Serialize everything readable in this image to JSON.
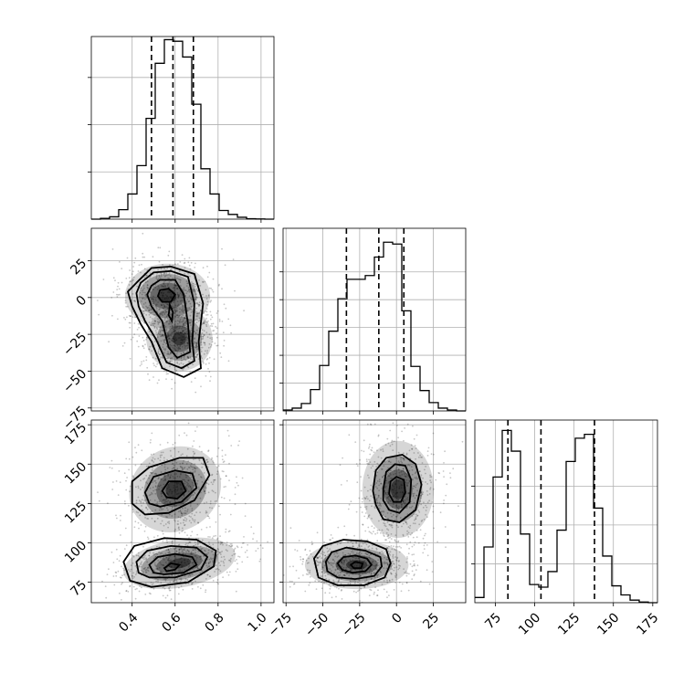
{
  "chart_data": {
    "type": "corner",
    "grid": true,
    "parameters": [
      {
        "range": [
          0.21,
          1.06
        ],
        "ticks": [
          0.4,
          0.6,
          0.8,
          1.0
        ],
        "tick_labels": [
          "0.4",
          "0.6",
          "0.8",
          "1.0"
        ],
        "quantiles": [
          0.49,
          0.59,
          0.685
        ]
      },
      {
        "range": [
          -77,
          47
        ],
        "ticks": [
          -75,
          -50,
          -25,
          0,
          25
        ],
        "tick_labels": [
          "−75",
          "−50",
          "−25",
          "0",
          "25"
        ],
        "quantiles": [
          -34,
          -12,
          5
        ]
      },
      {
        "range": [
          62,
          178
        ],
        "ticks": [
          75,
          100,
          125,
          150,
          175
        ],
        "tick_labels": [
          "75",
          "100",
          "125",
          "150",
          "175"
        ],
        "quantiles": [
          83,
          104,
          138
        ]
      }
    ],
    "histograms": [
      {
        "edges_start": 0.21,
        "bin_width": 0.0425,
        "counts": [
          0,
          0.05,
          0.15,
          0.6,
          1.6,
          3.4,
          6.4,
          9.9,
          11.4,
          11.3,
          10.3,
          7.3,
          3.2,
          1.6,
          0.55,
          0.3,
          0.12,
          0.03,
          0.01,
          0
        ],
        "ylim": [
          0,
          11.6
        ],
        "yticks": [
          3,
          6,
          9
        ]
      },
      {
        "edges_start": -77,
        "bin_width": 6.2,
        "counts": [
          0.1,
          0.3,
          0.8,
          2.3,
          4.9,
          8.6,
          12.1,
          14.2,
          14.2,
          14.6,
          16.6,
          18.2,
          18.0,
          10.8,
          4.8,
          2.2,
          0.9,
          0.3,
          0.1,
          0
        ],
        "ylim": [
          0,
          19.7
        ],
        "yticks": [
          3,
          6,
          9,
          12,
          15
        ]
      },
      {
        "edges_start": 62,
        "bin_width": 5.8,
        "counts": [
          0.4,
          4.3,
          9.7,
          13.3,
          11.7,
          5.3,
          1.4,
          1.2,
          2.4,
          5.6,
          10.9,
          12.7,
          13.0,
          7.3,
          3.6,
          1.3,
          0.6,
          0.2,
          0.05,
          0
        ],
        "ylim": [
          0,
          14.1
        ],
        "yticks": [
          3,
          6,
          9
        ]
      }
    ],
    "pairs": [
      {
        "x": 0,
        "y": 1,
        "blobs": [
          {
            "cx": 0.565,
            "cy": 1,
            "rx": 0.09,
            "ry": 10,
            "rot": 0
          },
          {
            "cx": 0.62,
            "cy": -28,
            "rx": 0.07,
            "ry": 10,
            "rot": 0
          }
        ],
        "contours": [
          [
            [
              0.42,
              10
            ],
            [
              0.49,
              20
            ],
            [
              0.58,
              21
            ],
            [
              0.69,
              16
            ],
            [
              0.73,
              -4
            ],
            [
              0.71,
              -30
            ],
            [
              0.72,
              -48
            ],
            [
              0.64,
              -54
            ],
            [
              0.54,
              -48
            ],
            [
              0.49,
              -30
            ],
            [
              0.44,
              -18
            ],
            [
              0.4,
              -6
            ],
            [
              0.38,
              4
            ]
          ],
          [
            [
              0.44,
              10
            ],
            [
              0.5,
              17
            ],
            [
              0.58,
              18
            ],
            [
              0.66,
              14
            ],
            [
              0.69,
              -4
            ],
            [
              0.68,
              -30
            ],
            [
              0.69,
              -43
            ],
            [
              0.63,
              -48
            ],
            [
              0.56,
              -44
            ],
            [
              0.51,
              -28
            ],
            [
              0.46,
              -16
            ],
            [
              0.43,
              -6
            ],
            [
              0.42,
              3
            ]
          ],
          [
            [
              0.49,
              8
            ],
            [
              0.53,
              12
            ],
            [
              0.6,
              12
            ],
            [
              0.64,
              2
            ],
            [
              0.66,
              -18
            ],
            [
              0.67,
              -37
            ],
            [
              0.61,
              -41
            ],
            [
              0.57,
              -34
            ],
            [
              0.54,
              -16
            ],
            [
              0.49,
              -6
            ],
            [
              0.47,
              2
            ]
          ],
          [
            [
              0.53,
              5
            ],
            [
              0.57,
              6
            ],
            [
              0.6,
              2
            ],
            [
              0.58,
              -3
            ],
            [
              0.54,
              -3
            ],
            [
              0.52,
              1
            ]
          ],
          [
            [
              0.575,
              -5
            ],
            [
              0.59,
              -10
            ],
            [
              0.585,
              -16
            ],
            [
              0.57,
              -12
            ]
          ]
        ]
      },
      {
        "x": 0,
        "y": 2,
        "blobs": [
          {
            "cx": 0.6,
            "cy": 134,
            "rx": 0.1,
            "ry": 12,
            "rot": -30
          },
          {
            "cx": 0.62,
            "cy": 87,
            "rx": 0.12,
            "ry": 7,
            "rot": -10
          }
        ],
        "contours": [
          [
            [
              0.4,
              125
            ],
            [
              0.4,
              139
            ],
            [
              0.48,
              148
            ],
            [
              0.62,
              154
            ],
            [
              0.73,
              154
            ],
            [
              0.76,
              143
            ],
            [
              0.69,
              127
            ],
            [
              0.57,
              119
            ],
            [
              0.46,
              118
            ]
          ],
          [
            [
              0.46,
              132
            ],
            [
              0.5,
              142
            ],
            [
              0.6,
              146
            ],
            [
              0.68,
              144
            ],
            [
              0.7,
              135
            ],
            [
              0.63,
              126
            ],
            [
              0.53,
              123
            ],
            [
              0.48,
              125
            ]
          ],
          [
            [
              0.54,
              133
            ],
            [
              0.57,
              139
            ],
            [
              0.63,
              139
            ],
            [
              0.65,
              133
            ],
            [
              0.61,
              128
            ],
            [
              0.56,
              129
            ]
          ],
          [
            [
              0.36,
              88
            ],
            [
              0.41,
              98
            ],
            [
              0.55,
              103
            ],
            [
              0.7,
              102
            ],
            [
              0.79,
              95
            ],
            [
              0.78,
              85
            ],
            [
              0.66,
              75
            ],
            [
              0.49,
              72
            ],
            [
              0.39,
              76
            ]
          ],
          [
            [
              0.42,
              88
            ],
            [
              0.47,
              95
            ],
            [
              0.58,
              98
            ],
            [
              0.7,
              97
            ],
            [
              0.75,
              91
            ],
            [
              0.72,
              83
            ],
            [
              0.6,
              78
            ],
            [
              0.48,
              78
            ],
            [
              0.43,
              81
            ]
          ],
          [
            [
              0.48,
              86
            ],
            [
              0.52,
              91
            ],
            [
              0.6,
              93
            ],
            [
              0.68,
              91
            ],
            [
              0.7,
              86
            ],
            [
              0.64,
              81
            ],
            [
              0.55,
              80
            ],
            [
              0.5,
              81
            ]
          ],
          [
            [
              0.55,
              84
            ],
            [
              0.58,
              87
            ],
            [
              0.62,
              86
            ],
            [
              0.6,
              83
            ],
            [
              0.56,
              82
            ]
          ]
        ]
      },
      {
        "x": 1,
        "y": 2,
        "blobs": [
          {
            "cx": 1,
            "cy": 134,
            "rx": 11,
            "ry": 14,
            "rot": 0
          },
          {
            "cx": -27,
            "cy": 86,
            "rx": 16,
            "ry": 7,
            "rot": 0
          }
        ],
        "contours": [
          [
            [
              -16,
              133
            ],
            [
              -14,
              146
            ],
            [
              -7,
              154
            ],
            [
              4,
              156
            ],
            [
              13,
              150
            ],
            [
              17,
              137
            ],
            [
              13,
              121
            ],
            [
              2,
              113
            ],
            [
              -9,
              115
            ],
            [
              -14,
              124
            ]
          ],
          [
            [
              -9,
              134
            ],
            [
              -7,
              145
            ],
            [
              -1,
              150
            ],
            [
              6,
              149
            ],
            [
              10,
              140
            ],
            [
              9,
              126
            ],
            [
              2,
              119
            ],
            [
              -5,
              121
            ],
            [
              -9,
              127
            ]
          ],
          [
            [
              -5,
              131
            ],
            [
              -4,
              139
            ],
            [
              0,
              142
            ],
            [
              5,
              140
            ],
            [
              6,
              132
            ],
            [
              3,
              126
            ],
            [
              -2,
              126
            ]
          ],
          [
            [
              -56,
              90
            ],
            [
              -50,
              98
            ],
            [
              -36,
              102
            ],
            [
              -20,
              101
            ],
            [
              -7,
              96
            ],
            [
              -4,
              87
            ],
            [
              -8,
              78
            ],
            [
              -22,
              73
            ],
            [
              -40,
              73
            ],
            [
              -53,
              78
            ]
          ],
          [
            [
              -48,
              88
            ],
            [
              -44,
              94
            ],
            [
              -34,
              97
            ],
            [
              -21,
              95
            ],
            [
              -11,
              91
            ],
            [
              -10,
              85
            ],
            [
              -15,
              79
            ],
            [
              -28,
              77
            ],
            [
              -40,
              78
            ],
            [
              -47,
              82
            ]
          ],
          [
            [
              -40,
              87
            ],
            [
              -36,
              91
            ],
            [
              -28,
              92
            ],
            [
              -20,
              90
            ],
            [
              -17,
              86
            ],
            [
              -21,
              82
            ],
            [
              -30,
              81
            ],
            [
              -37,
              83
            ]
          ],
          [
            [
              -31,
              86
            ],
            [
              -28,
              88
            ],
            [
              -23,
              87
            ],
            [
              -24,
              84
            ],
            [
              -29,
              84
            ]
          ]
        ]
      }
    ]
  }
}
